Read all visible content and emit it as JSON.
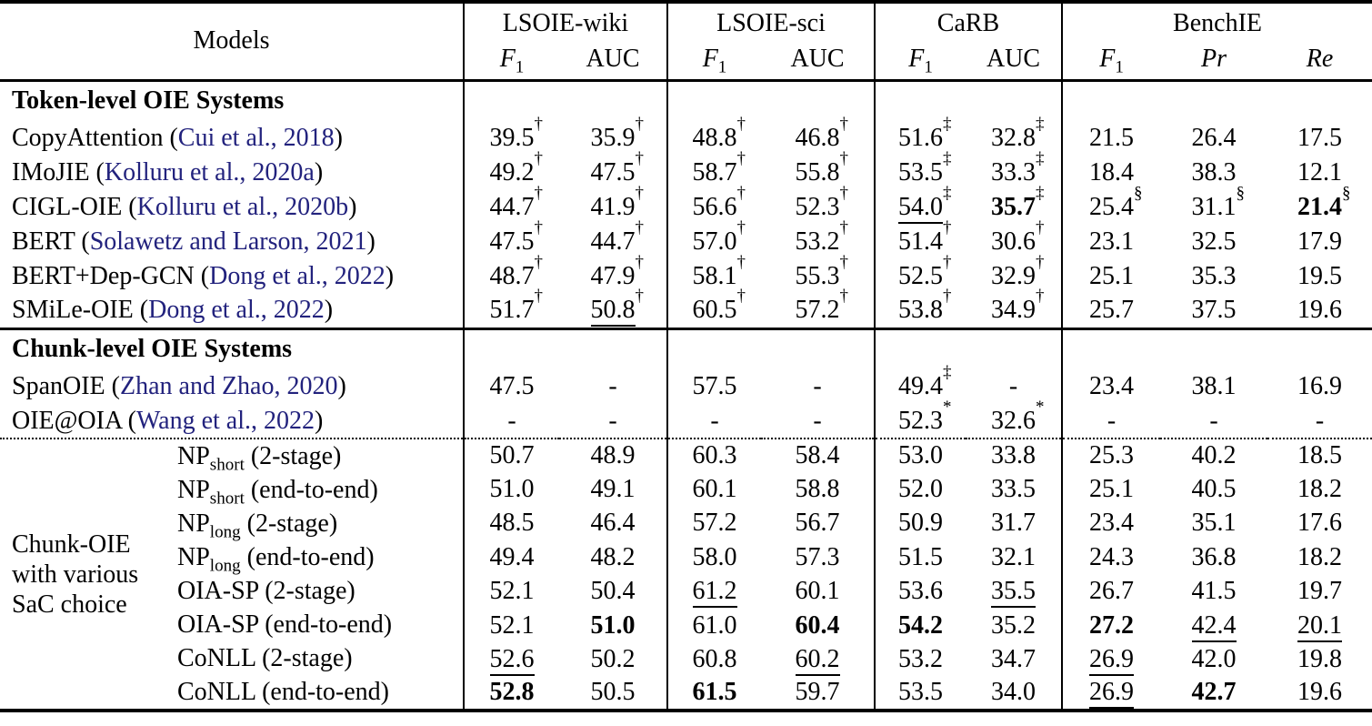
{
  "colors": {
    "text": "#000000",
    "citation": "#22227d",
    "rule": "#000000"
  },
  "table": {
    "header": {
      "models": "Models",
      "groups": [
        {
          "name": "LSOIE-wiki",
          "span": 2
        },
        {
          "name": "LSOIE-sci",
          "span": 2
        },
        {
          "name": "CaRB",
          "span": 2
        },
        {
          "name": "BenchIE",
          "span": 3
        }
      ],
      "metrics": [
        {
          "main": "F",
          "sub": "1",
          "italic": true
        },
        {
          "main": "AUC",
          "italic": false
        },
        {
          "main": "F",
          "sub": "1",
          "italic": true
        },
        {
          "main": "AUC",
          "italic": false
        },
        {
          "main": "F",
          "sub": "1",
          "italic": true
        },
        {
          "main": "AUC",
          "italic": false
        },
        {
          "main": "F",
          "sub": "1",
          "italic": true
        },
        {
          "main": "Pr",
          "italic": true
        },
        {
          "main": "Re",
          "italic": true
        }
      ]
    },
    "sections": [
      {
        "title": "Token-level OIE Systems",
        "rows": [
          {
            "name": "CopyAttention",
            "cite": "Cui et al., 2018",
            "cells": [
              {
                "v": "39.5",
                "s": "†"
              },
              {
                "v": "35.9",
                "s": "†"
              },
              {
                "v": "48.8",
                "s": "†"
              },
              {
                "v": "46.8",
                "s": "†"
              },
              {
                "v": "51.6",
                "s": "‡"
              },
              {
                "v": "32.8",
                "s": "‡"
              },
              {
                "v": "21.5"
              },
              {
                "v": "26.4"
              },
              {
                "v": "17.5"
              }
            ]
          },
          {
            "name": "IMoJIE",
            "cite": "Kolluru et al., 2020a",
            "cells": [
              {
                "v": "49.2",
                "s": "†"
              },
              {
                "v": "47.5",
                "s": "†"
              },
              {
                "v": "58.7",
                "s": "†"
              },
              {
                "v": "55.8",
                "s": "†"
              },
              {
                "v": "53.5",
                "s": "‡"
              },
              {
                "v": "33.3",
                "s": "‡"
              },
              {
                "v": "18.4"
              },
              {
                "v": "38.3"
              },
              {
                "v": "12.1"
              }
            ]
          },
          {
            "name": "CIGL-OIE",
            "cite": "Kolluru et al., 2020b",
            "cells": [
              {
                "v": "44.7",
                "s": "†"
              },
              {
                "v": "41.9",
                "s": "†"
              },
              {
                "v": "56.6",
                "s": "†"
              },
              {
                "v": "52.3",
                "s": "†"
              },
              {
                "v": "54.0",
                "s": "‡",
                "u": true
              },
              {
                "v": "35.7",
                "s": "‡",
                "b": true
              },
              {
                "v": "25.4",
                "s": "§"
              },
              {
                "v": "31.1",
                "s": "§"
              },
              {
                "v": "21.4",
                "s": "§",
                "b": true
              }
            ]
          },
          {
            "name": "BERT",
            "cite": "Solawetz and Larson, 2021",
            "cells": [
              {
                "v": "47.5",
                "s": "†"
              },
              {
                "v": "44.7",
                "s": "†"
              },
              {
                "v": "57.0",
                "s": "†"
              },
              {
                "v": "53.2",
                "s": "†"
              },
              {
                "v": "51.4",
                "s": "†"
              },
              {
                "v": "30.6",
                "s": "†"
              },
              {
                "v": "23.1"
              },
              {
                "v": "32.5"
              },
              {
                "v": "17.9"
              }
            ]
          },
          {
            "name": "BERT+Dep-GCN",
            "cite": "Dong et al., 2022",
            "cells": [
              {
                "v": "48.7",
                "s": "†"
              },
              {
                "v": "47.9",
                "s": "†"
              },
              {
                "v": "58.1",
                "s": "†"
              },
              {
                "v": "55.3",
                "s": "†"
              },
              {
                "v": "52.5",
                "s": "†"
              },
              {
                "v": "32.9",
                "s": "†"
              },
              {
                "v": "25.1"
              },
              {
                "v": "35.3"
              },
              {
                "v": "19.5"
              }
            ]
          },
          {
            "name": "SMiLe-OIE",
            "cite": "Dong et al., 2022",
            "cells": [
              {
                "v": "51.7",
                "s": "†"
              },
              {
                "v": "50.8",
                "s": "†",
                "u": true
              },
              {
                "v": "60.5",
                "s": "†"
              },
              {
                "v": "57.2",
                "s": "†"
              },
              {
                "v": "53.8",
                "s": "†"
              },
              {
                "v": "34.9",
                "s": "†"
              },
              {
                "v": "25.7"
              },
              {
                "v": "37.5"
              },
              {
                "v": "19.6"
              }
            ]
          }
        ]
      },
      {
        "title": "Chunk-level OIE Systems",
        "rows": [
          {
            "name": "SpanOIE",
            "cite": "Zhan and Zhao, 2020",
            "cells": [
              {
                "v": "47.5"
              },
              {
                "v": "-"
              },
              {
                "v": "57.5"
              },
              {
                "v": "-"
              },
              {
                "v": "49.4",
                "s": "‡"
              },
              {
                "v": "-"
              },
              {
                "v": "23.4"
              },
              {
                "v": "38.1"
              },
              {
                "v": "16.9"
              }
            ]
          },
          {
            "name": "OIE@OIA",
            "cite": "Wang et al., 2022",
            "cells": [
              {
                "v": "-"
              },
              {
                "v": "-"
              },
              {
                "v": "-"
              },
              {
                "v": "-"
              },
              {
                "v": "52.3",
                "s": "*"
              },
              {
                "v": "32.6",
                "s": "*"
              },
              {
                "v": "-"
              },
              {
                "v": "-"
              },
              {
                "v": "-"
              }
            ]
          }
        ]
      },
      {
        "group_label": [
          "Chunk-OIE",
          "with various",
          "SaC choice"
        ],
        "rows": [
          {
            "pre": "NP",
            "sub": "short",
            "post": " (2-stage)",
            "cells": [
              {
                "v": "50.7"
              },
              {
                "v": "48.9"
              },
              {
                "v": "60.3"
              },
              {
                "v": "58.4"
              },
              {
                "v": "53.0"
              },
              {
                "v": "33.8"
              },
              {
                "v": "25.3"
              },
              {
                "v": "40.2"
              },
              {
                "v": "18.5"
              }
            ]
          },
          {
            "pre": "NP",
            "sub": "short",
            "post": " (end-to-end)",
            "cells": [
              {
                "v": "51.0"
              },
              {
                "v": "49.1"
              },
              {
                "v": "60.1"
              },
              {
                "v": "58.8"
              },
              {
                "v": "52.0"
              },
              {
                "v": "33.5"
              },
              {
                "v": "25.1"
              },
              {
                "v": "40.5"
              },
              {
                "v": "18.2"
              }
            ]
          },
          {
            "pre": "NP",
            "sub": "long",
            "post": " (2-stage)",
            "cells": [
              {
                "v": "48.5"
              },
              {
                "v": "46.4"
              },
              {
                "v": "57.2"
              },
              {
                "v": "56.7"
              },
              {
                "v": "50.9"
              },
              {
                "v": "31.7"
              },
              {
                "v": "23.4"
              },
              {
                "v": "35.1"
              },
              {
                "v": "17.6"
              }
            ]
          },
          {
            "pre": "NP",
            "sub": "long",
            "post": " (end-to-end)",
            "cells": [
              {
                "v": "49.4"
              },
              {
                "v": "48.2"
              },
              {
                "v": "58.0"
              },
              {
                "v": "57.3"
              },
              {
                "v": "51.5"
              },
              {
                "v": "32.1"
              },
              {
                "v": "24.3"
              },
              {
                "v": "36.8"
              },
              {
                "v": "18.2"
              }
            ]
          },
          {
            "pre": "OIA-SP",
            "post": " (2-stage)",
            "cells": [
              {
                "v": "52.1"
              },
              {
                "v": "50.4"
              },
              {
                "v": "61.2",
                "u": true
              },
              {
                "v": "60.1"
              },
              {
                "v": "53.6"
              },
              {
                "v": "35.5",
                "u": true
              },
              {
                "v": "26.7"
              },
              {
                "v": "41.5"
              },
              {
                "v": "19.7"
              }
            ]
          },
          {
            "pre": "OIA-SP",
            "post": " (end-to-end)",
            "cells": [
              {
                "v": "52.1"
              },
              {
                "v": "51.0",
                "b": true
              },
              {
                "v": "61.0"
              },
              {
                "v": "60.4",
                "b": true
              },
              {
                "v": "54.2",
                "b": true
              },
              {
                "v": "35.2"
              },
              {
                "v": "27.2",
                "b": true
              },
              {
                "v": "42.4",
                "u": true
              },
              {
                "v": "20.1",
                "u": true
              }
            ]
          },
          {
            "pre": "CoNLL",
            "post": " (2-stage)",
            "cells": [
              {
                "v": "52.6",
                "u": true
              },
              {
                "v": "50.2"
              },
              {
                "v": "60.8"
              },
              {
                "v": "60.2",
                "u": true
              },
              {
                "v": "53.2"
              },
              {
                "v": "34.7"
              },
              {
                "v": "26.9",
                "u": true
              },
              {
                "v": "42.0"
              },
              {
                "v": "19.8"
              }
            ]
          },
          {
            "pre": "CoNLL",
            "post": " (end-to-end)",
            "cells": [
              {
                "v": "52.8",
                "b": true
              },
              {
                "v": "50.5"
              },
              {
                "v": "61.5",
                "b": true
              },
              {
                "v": "59.7"
              },
              {
                "v": "53.5"
              },
              {
                "v": "34.0"
              },
              {
                "v": "26.9",
                "u": true
              },
              {
                "v": "42.7",
                "b": true
              },
              {
                "v": "19.6"
              }
            ]
          }
        ]
      }
    ]
  }
}
